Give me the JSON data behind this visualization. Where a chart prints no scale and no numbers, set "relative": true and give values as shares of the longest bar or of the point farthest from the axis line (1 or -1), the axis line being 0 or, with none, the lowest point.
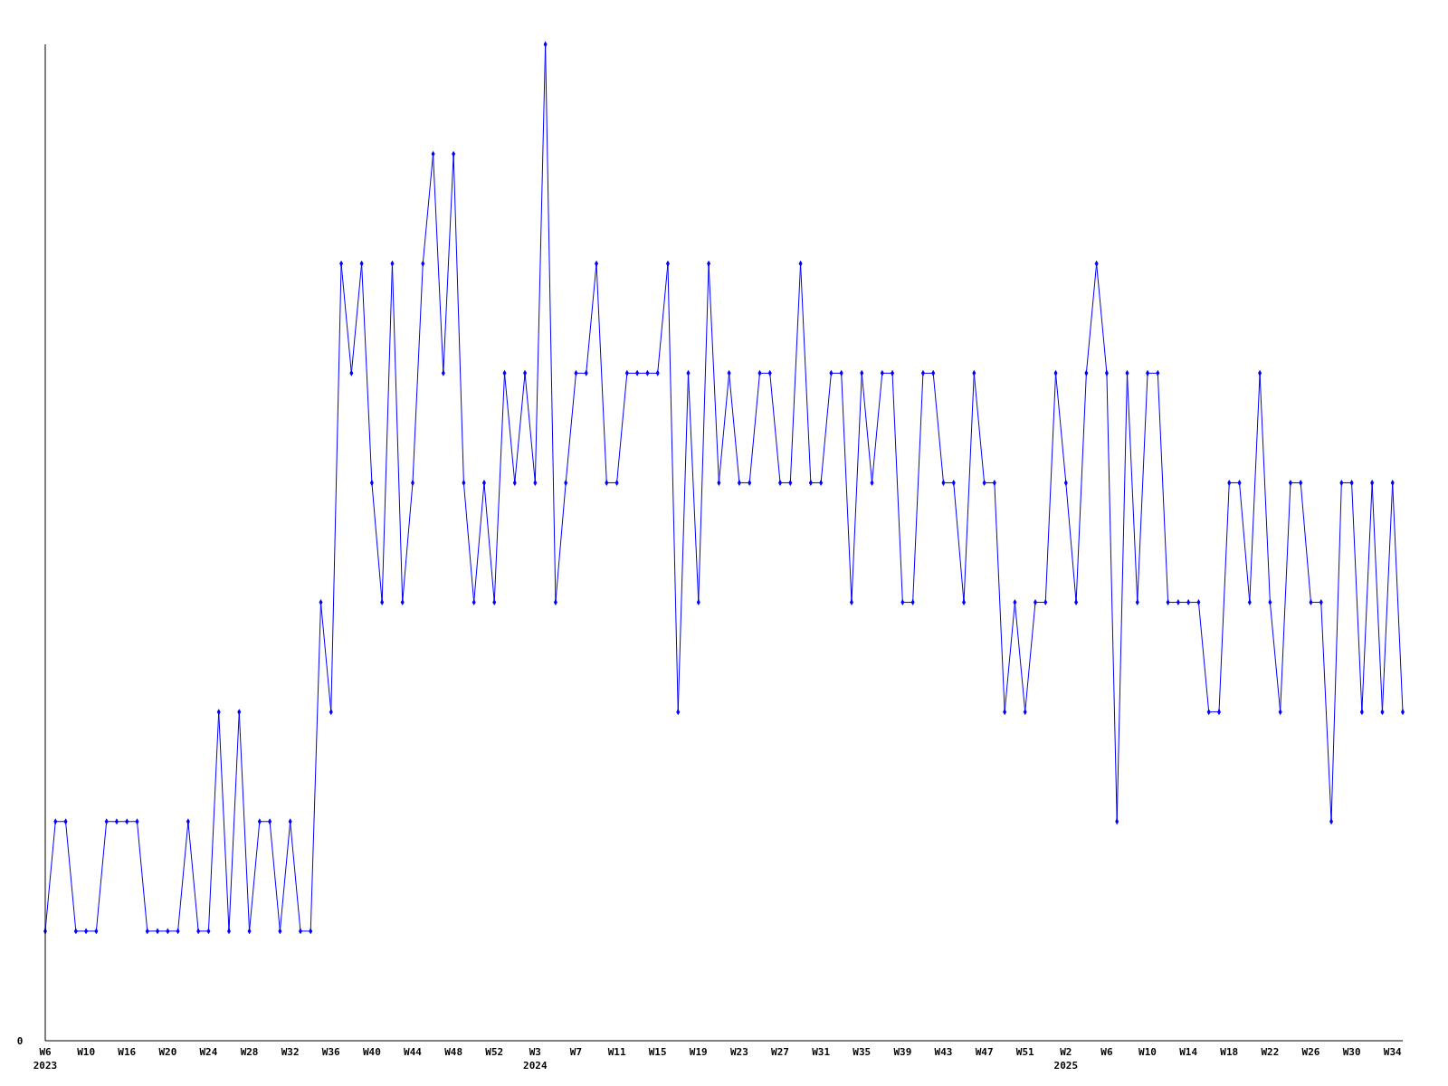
{
  "chart_data": {
    "type": "line",
    "relative": true,
    "annotations": [
      "0"
    ],
    "marker": "diamond",
    "grid": false,
    "categories": [
      "W6\n2023",
      null,
      null,
      null,
      "W10",
      null,
      null,
      null,
      "W16",
      null,
      null,
      null,
      "W20",
      null,
      null,
      null,
      "W24",
      null,
      null,
      null,
      "W28",
      null,
      null,
      null,
      "W32",
      null,
      null,
      null,
      "W36",
      null,
      null,
      null,
      "W40",
      null,
      null,
      null,
      "W44",
      null,
      null,
      null,
      "W48",
      null,
      null,
      null,
      "W52",
      null,
      null,
      null,
      "W3\n2024",
      null,
      null,
      null,
      "W7",
      null,
      null,
      null,
      "W11",
      null,
      null,
      null,
      "W15",
      null,
      null,
      null,
      "W19",
      null,
      null,
      null,
      "W23",
      null,
      null,
      null,
      "W27",
      null,
      null,
      null,
      "W31",
      null,
      null,
      null,
      "W35",
      null,
      null,
      null,
      "W39",
      null,
      null,
      null,
      "W43",
      null,
      null,
      null,
      "W47",
      null,
      null,
      null,
      "W51",
      null,
      null,
      null,
      "W2\n2025",
      null,
      null,
      null,
      "W6",
      null,
      null,
      null,
      "W10",
      null,
      null,
      null,
      "W14",
      null,
      null,
      null,
      "W18",
      null,
      null,
      null,
      "W22",
      null,
      null,
      null,
      "W26",
      null,
      null,
      null,
      "W30",
      null,
      null,
      null,
      "W34",
      null
    ],
    "series": [
      {
        "color": "#0000ff",
        "values": [
          0.11,
          0.22,
          0.22,
          0.11,
          0.11,
          0.11,
          0.22,
          0.22,
          0.22,
          0.22,
          0.11,
          0.11,
          0.11,
          0.11,
          0.22,
          0.11,
          0.11,
          0.33,
          0.11,
          0.33,
          0.11,
          0.22,
          0.22,
          0.11,
          0.22,
          0.11,
          0.11,
          0.44,
          0.33,
          0.78,
          0.67,
          0.78,
          0.56,
          0.44,
          0.78,
          0.44,
          0.56,
          0.78,
          0.89,
          0.67,
          0.89,
          0.56,
          0.44,
          0.56,
          0.44,
          0.67,
          0.56,
          0.67,
          0.56,
          1,
          0.44,
          0.56,
          0.67,
          0.67,
          0.78,
          0.56,
          0.56,
          0.67,
          0.67,
          0.67,
          0.67,
          0.78,
          0.33,
          0.67,
          0.44,
          0.78,
          0.56,
          0.67,
          0.56,
          0.56,
          0.67,
          0.67,
          0.56,
          0.56,
          0.78,
          0.56,
          0.56,
          0.67,
          0.67,
          0.44,
          0.67,
          0.56,
          0.67,
          0.67,
          0.44,
          0.44,
          0.67,
          0.67,
          0.56,
          0.56,
          0.44,
          0.67,
          0.56,
          0.56,
          0.33,
          0.44,
          0.33,
          0.44,
          0.44,
          0.67,
          0.56,
          0.44,
          0.67,
          0.78,
          0.67,
          0.22,
          0.67,
          0.44,
          0.67,
          0.67,
          0.44,
          0.44,
          0.44,
          0.44,
          0.33,
          0.33,
          0.56,
          0.56,
          0.44,
          0.67,
          0.44,
          0.33,
          0.56,
          0.56,
          0.44,
          0.44,
          0.22,
          0.56,
          0.56,
          0.33,
          0.56,
          0.33,
          0.56,
          0.33
        ]
      }
    ]
  }
}
